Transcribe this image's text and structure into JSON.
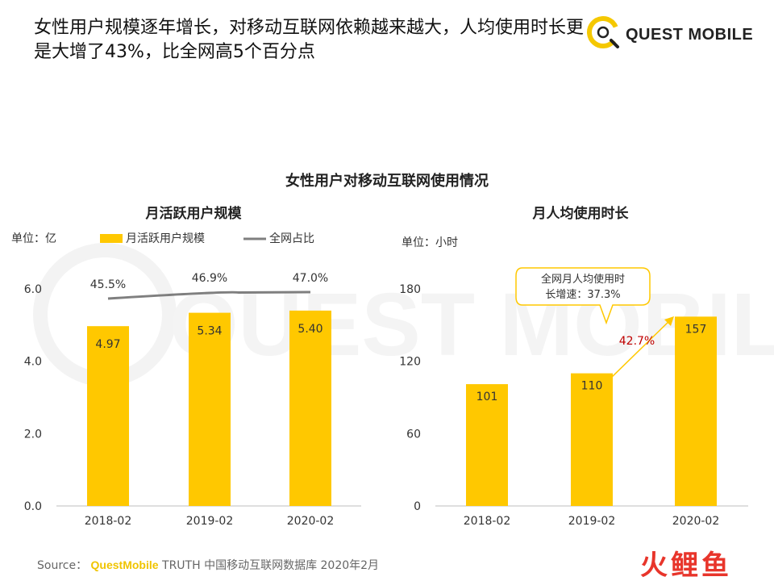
{
  "headline": "女性用户规模逐年增长，对移动互联网依赖越来越大，人均使用时长更是大增了43%，比全网高5个百分点",
  "brand": {
    "name": "QUEST MOBILE",
    "logo_color": "#f5c800"
  },
  "watermark": "QUEST MOBILE",
  "figure_title": "女性用户对移动互联网使用情况",
  "colors": {
    "bar": "#ffc800",
    "line": "#7f7f7f",
    "annotation": "#c00000",
    "axis": "#bfbfbf",
    "text": "#333333"
  },
  "chart_data": [
    {
      "type": "bar",
      "title": "月活跃用户规模",
      "unit_label": "单位：亿",
      "categories": [
        "2018-02",
        "2019-02",
        "2020-02"
      ],
      "ylim": [
        0,
        6
      ],
      "yticks": [
        "0.0",
        "2.0",
        "4.0",
        "6.0"
      ],
      "grid": false,
      "legend": [
        "月活跃用户规模",
        "全网占比"
      ],
      "series": [
        {
          "name": "月活跃用户规模",
          "type": "bar",
          "values": [
            4.97,
            5.34,
            5.4
          ],
          "labels": [
            "4.97",
            "5.34",
            "5.40"
          ]
        },
        {
          "name": "全网占比",
          "type": "line",
          "values": [
            45.5,
            46.9,
            47.0
          ],
          "labels": [
            "45.5%",
            "46.9%",
            "47.0%"
          ]
        }
      ]
    },
    {
      "type": "bar",
      "title": "月人均使用时长",
      "unit_label": "单位：小时",
      "categories": [
        "2018-02",
        "2019-02",
        "2020-02"
      ],
      "ylim": [
        0,
        180
      ],
      "yticks": [
        "0",
        "60",
        "120",
        "180"
      ],
      "grid": false,
      "series": [
        {
          "name": "月人均使用时长",
          "values": [
            101,
            110,
            157
          ],
          "labels": [
            "101",
            "110",
            "157"
          ]
        }
      ],
      "annotations": {
        "growth_label": "42.7%",
        "callout_text": [
          "全网月人均使用时",
          "长增速：37.3%"
        ]
      }
    }
  ],
  "source": {
    "prefix": "Source：",
    "brand": "QuestMobile",
    "text": "TRUTH 中国移动互联网数据库 2020年2月"
  },
  "corner_logo": {
    "text": "火鲤鱼",
    "color": "#e8352b"
  }
}
